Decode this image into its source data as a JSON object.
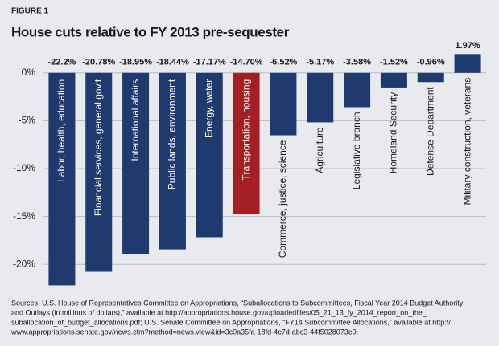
{
  "chart_data": {
    "type": "bar",
    "figure_label": "FIGURE 1",
    "title": "House cuts relative to FY 2013 pre-sequester",
    "categories": [
      "Labor, health, education",
      "Financial services, general gov't",
      "International affairs",
      "Public lands, environment",
      "Energy, water",
      "Transportation, housing",
      "Commerce, justice, science",
      "Agriculture",
      "Legislative branch",
      "Homeland Security",
      "Defense Department",
      "Military construction, veterans"
    ],
    "values": [
      -22.2,
      -20.78,
      -18.95,
      -18.44,
      -17.17,
      -14.7,
      -6.52,
      -5.17,
      -3.58,
      -1.52,
      -0.96,
      1.97
    ],
    "value_labels": [
      "-22.2%",
      "-20.78%",
      "-18.95%",
      "-18.44%",
      "-17.17%",
      "-14.70%",
      "-6.52%",
      "-5.17%",
      "-3.58%",
      "-1.52%",
      "-0.96%",
      "1.97%"
    ],
    "colors": [
      "#1f3a6e",
      "#1f3a6e",
      "#1f3a6e",
      "#1f3a6e",
      "#1f3a6e",
      "#a31f24",
      "#1f3a6e",
      "#1f3a6e",
      "#1f3a6e",
      "#1f3a6e",
      "#1f3a6e",
      "#1f3a6e"
    ],
    "ylim": [
      -22.5,
      2.5
    ],
    "yticks": [
      {
        "value": 0,
        "label": "0%"
      },
      {
        "value": -5,
        "label": "-5%"
      },
      {
        "value": -10,
        "label": "-10%"
      },
      {
        "value": -15,
        "label": "-15%"
      },
      {
        "value": -20,
        "label": "-20%"
      }
    ],
    "grid": true,
    "source": [
      "Sources: U.S. House of Representatives Committee on Appropriations, “Suballocations to Subcommittees, Fiscal Year 2014 Budget Authority",
      "and Outlays (in millions of dollars),” available at http://appropriations.house.gov/uploadedfiles/05_21_13_fy_2014_report_on_the_",
      "suballocation_of_budget_allocations.pdf; U.S. Senate Committee on Appropriations, “FY14 Subcommittee Allocations,” available at http://",
      "www.appropriations.senate.gov/news.cfm?method=news.view&id=3c0a35fa-18fd-4c7d-abc3-44f5028073e9."
    ]
  }
}
